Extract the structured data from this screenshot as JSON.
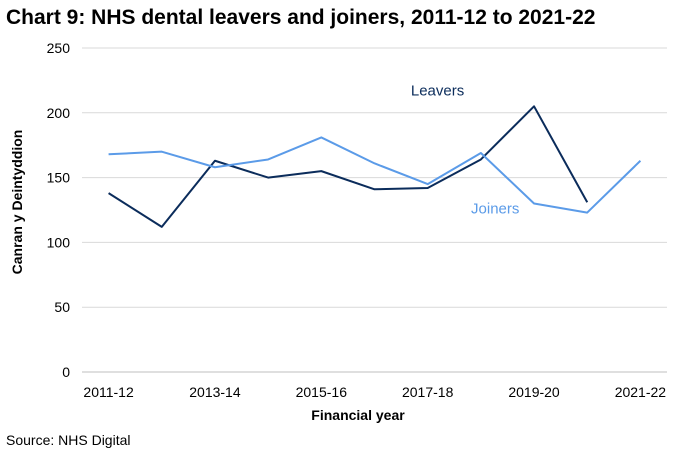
{
  "title": "Chart 9: NHS dental leavers and joiners, 2011-12 to 2021-22",
  "source": "Source: NHS Digital",
  "chart_data": {
    "type": "line",
    "title": "Chart 9: NHS dental leavers and joiners, 2011-12 to 2021-22",
    "xlabel": "Financial year",
    "ylabel": "Canran y Deintyddion",
    "ylim": [
      0,
      250
    ],
    "yticks": [
      0,
      50,
      100,
      150,
      200,
      250
    ],
    "categories": [
      "2011-12",
      "2012-13",
      "2013-14",
      "2014-15",
      "2015-16",
      "2016-17",
      "2017-18",
      "2018-19",
      "2019-20",
      "2020-21",
      "2021-22"
    ],
    "x_tick_labels": [
      "2011-12",
      "2013-14",
      "2015-16",
      "2017-18",
      "2019-20",
      "2021-22"
    ],
    "grid": "horizontal",
    "series": [
      {
        "name": "Leavers",
        "color": "#0b2c5b",
        "values": [
          138,
          112,
          163,
          150,
          155,
          141,
          142,
          164,
          205,
          131,
          null
        ]
      },
      {
        "name": "Joiners",
        "color": "#5b9be8",
        "values": [
          168,
          170,
          158,
          164,
          181,
          161,
          145,
          169,
          130,
          123,
          163
        ]
      }
    ]
  }
}
